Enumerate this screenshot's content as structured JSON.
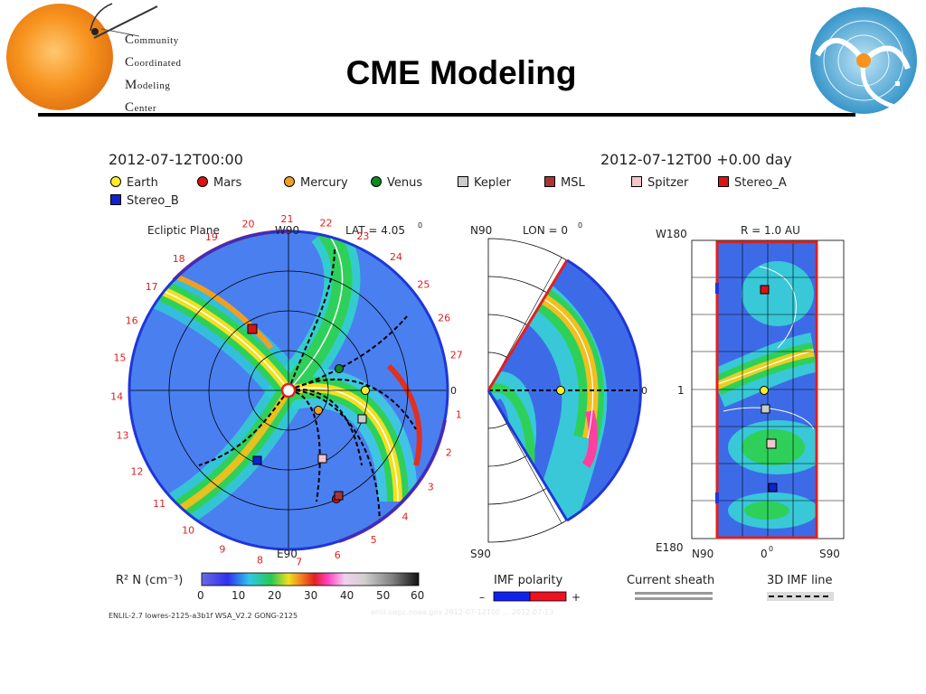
{
  "slide": {
    "title": "CME Modeling",
    "logo_left": {
      "lines": [
        "Community",
        "Coordinated",
        "Modeling",
        "Center"
      ]
    }
  },
  "figure": {
    "timestamp_left": "2012-07-12T00:00",
    "timestamp_right": "2012-07-12T00 +0.00 day",
    "legend": [
      {
        "label": "Earth",
        "shape": "circle",
        "color": "#ffee22"
      },
      {
        "label": "Mars",
        "shape": "circle",
        "color": "#dd1111"
      },
      {
        "label": "Mercury",
        "shape": "circle",
        "color": "#f0a020"
      },
      {
        "label": "Venus",
        "shape": "circle",
        "color": "#118822"
      },
      {
        "label": "Kepler",
        "shape": "square",
        "color": "#cccccc"
      },
      {
        "label": "MSL",
        "shape": "square",
        "color": "#aa3333"
      },
      {
        "label": "Spitzer",
        "shape": "square",
        "color": "#f4c6cc"
      },
      {
        "label": "Stereo_A",
        "shape": "square",
        "color": "#dd1111"
      },
      {
        "label": "Stereo_B",
        "shape": "square",
        "color": "#1122cc"
      }
    ],
    "ecliptic": {
      "title": "Ecliptic Plane",
      "top_label": "W90",
      "bottom_label": "E90",
      "lat_label": "LAT = 4.05",
      "degree_mark": "0",
      "right_label": "0",
      "rotation_numbers": [
        "1",
        "2",
        "3",
        "4",
        "5",
        "6",
        "7",
        "8",
        "9",
        "10",
        "11",
        "12",
        "13",
        "14",
        "15",
        "16",
        "17",
        "18",
        "19",
        "20",
        "21",
        "22",
        "23",
        "24",
        "25",
        "26",
        "27"
      ]
    },
    "meridional": {
      "top_label": "N90",
      "lon_label": "LON = 0",
      "degree_mark": "0",
      "bottom_label": "S90",
      "right_label": "0"
    },
    "radial": {
      "title": "R = 1.0 AU",
      "top_left_label": "W180",
      "mid_left_label": "1",
      "bottom_left_label": "E180",
      "bottom_labels": [
        "N90",
        "0",
        "S90"
      ],
      "degree_mark": "0"
    },
    "colorbar": {
      "label": "R² N (cm⁻³)",
      "ticks": [
        "0",
        "10",
        "20",
        "30",
        "40",
        "50",
        "60"
      ]
    },
    "imf_polarity": {
      "label": "IMF polarity",
      "minus": "–",
      "plus": "+"
    },
    "current_sheath": {
      "label": "Current sheath"
    },
    "imf_line": {
      "label": "3D IMF line"
    },
    "caption": "ENLIL-2.7 lowres-2125-a3b1f WSA_V2.2 GONG-2125",
    "faint_caption": "enlil.swpc.noaa.gov 2012-07-12T00 ... 2012-07-13"
  }
}
